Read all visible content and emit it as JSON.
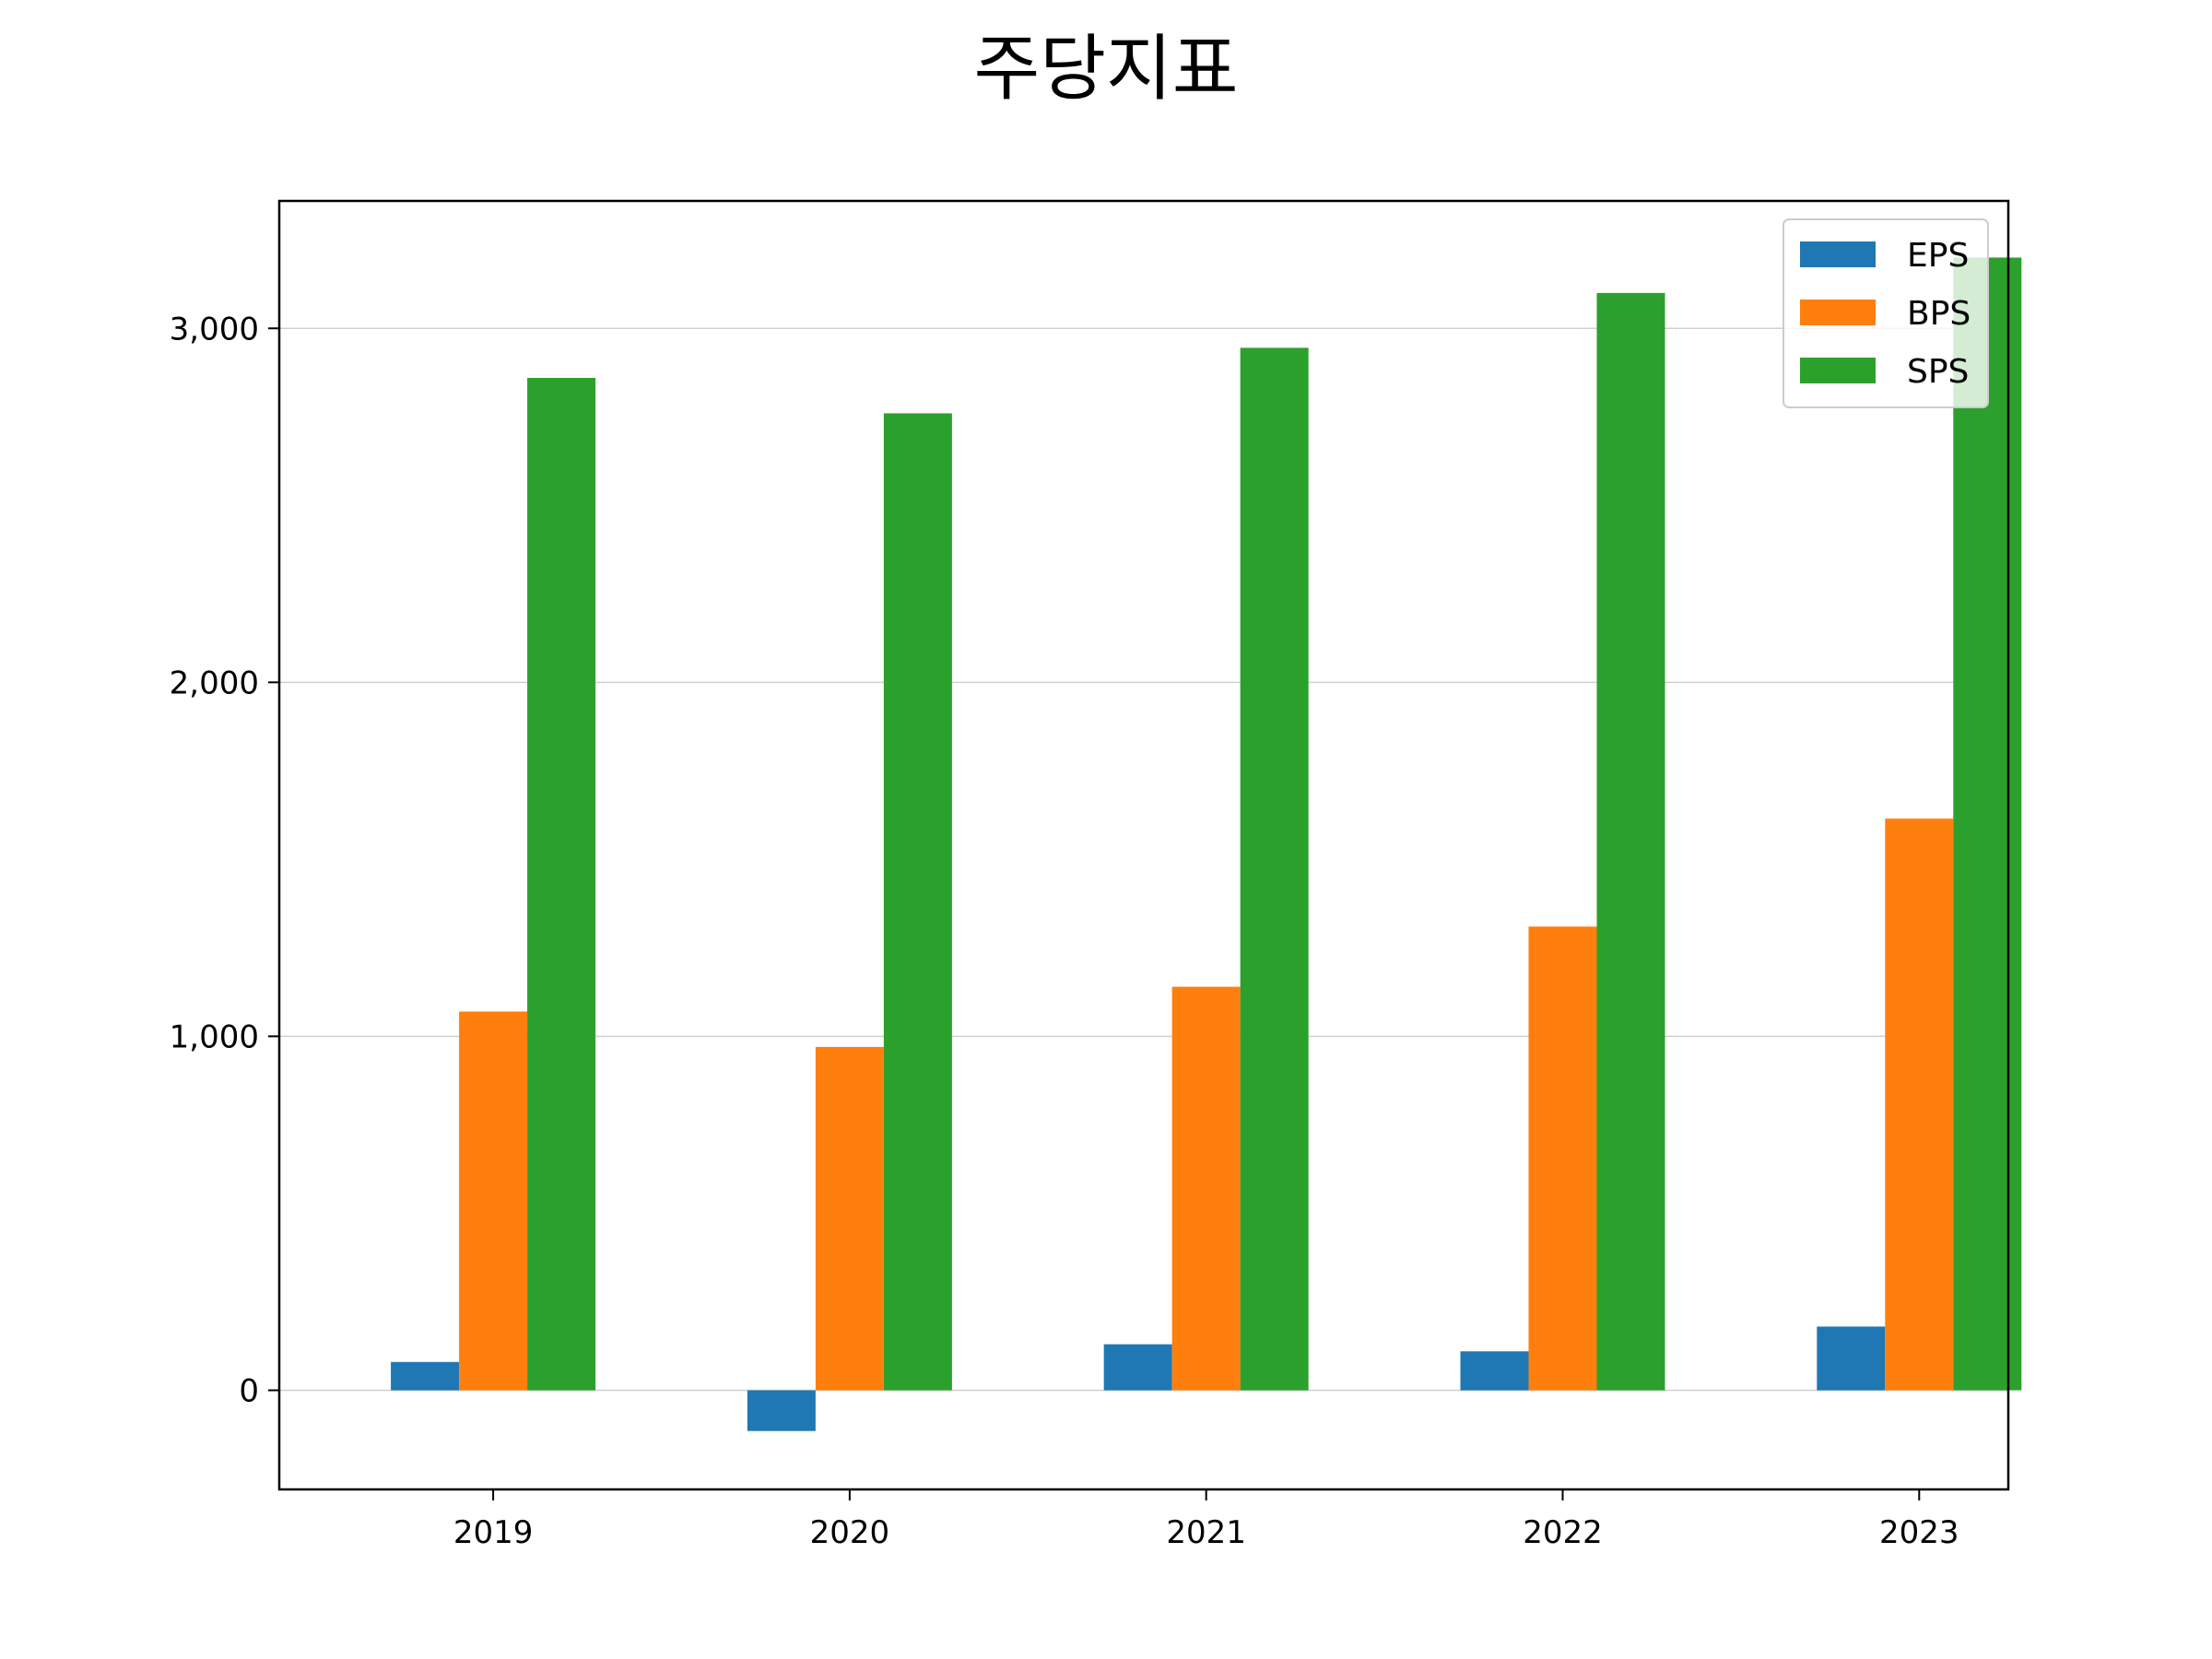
{
  "chart_data": {
    "type": "bar",
    "title": "주당지표",
    "xlabel": "",
    "ylabel": "",
    "categories": [
      "2019",
      "2020",
      "2021",
      "2022",
      "2023"
    ],
    "series": [
      {
        "name": "EPS",
        "color": "#1f77b4",
        "values": [
          80,
          -115,
          130,
          110,
          180
        ]
      },
      {
        "name": "BPS",
        "color": "#ff7f0e",
        "values": [
          1070,
          970,
          1140,
          1310,
          1615
        ]
      },
      {
        "name": "SPS",
        "color": "#2ca02c",
        "values": [
          2860,
          2760,
          2945,
          3100,
          3200
        ]
      }
    ],
    "ylim": [
      -280,
      3360
    ],
    "yticks": [
      0,
      1000,
      2000,
      3000
    ],
    "ytick_labels": [
      "0",
      "1,000",
      "2,000",
      "3,000"
    ],
    "grid": "horizontal",
    "legend_position": "top-right"
  }
}
